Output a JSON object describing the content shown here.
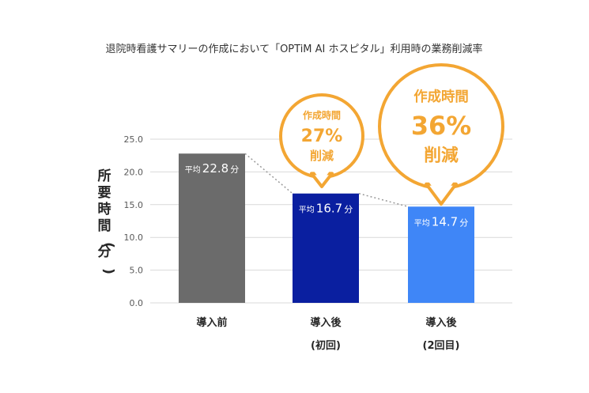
{
  "chart_data": {
    "type": "bar",
    "title": "退院時看護サマリーの作成において「OPTiM AI ホスピタル」利用時の業務削減率",
    "ylabel": "所要時間(分)",
    "ylim": [
      0,
      25
    ],
    "yticks": [
      "0.0",
      "5.0",
      "10.0",
      "15.0",
      "20.0",
      "25.0"
    ],
    "categories": [
      {
        "line1": "導入前",
        "line2": ""
      },
      {
        "line1": "導入後",
        "line2": "(初回)"
      },
      {
        "line1": "導入後",
        "line2": "(2回目)"
      }
    ],
    "values": [
      22.8,
      16.7,
      14.7
    ],
    "value_labels": [
      {
        "prefix": "平均",
        "value": "22.8",
        "unit": "分"
      },
      {
        "prefix": "平均",
        "value": "16.7",
        "unit": "分"
      },
      {
        "prefix": "平均",
        "value": "14.7",
        "unit": "分"
      }
    ],
    "bar_colors": [
      "#6b6b6b",
      "#0a1fa0",
      "#3f86f7"
    ],
    "callouts": [
      {
        "line1": "作成時間",
        "line2": "27%",
        "line3": "削減"
      },
      {
        "line1": "作成時間",
        "line2": "36%",
        "line3": "削減"
      }
    ],
    "callout_color": "#f3a633"
  }
}
